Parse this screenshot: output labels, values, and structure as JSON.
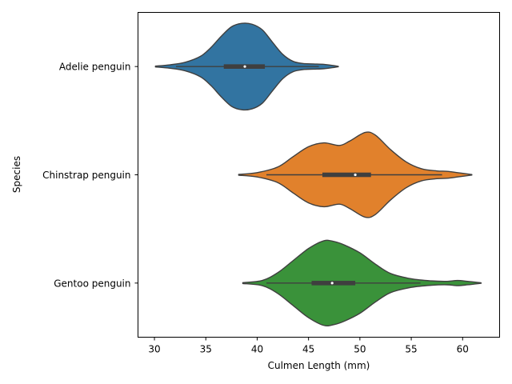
{
  "chart_data": {
    "type": "violin",
    "orientation": "horizontal",
    "title": "",
    "xlabel": "Culmen Length (mm)",
    "ylabel": "Species",
    "xlim": [
      28.4,
      63.6
    ],
    "xticks": [
      30,
      35,
      40,
      45,
      50,
      55,
      60
    ],
    "grid": false,
    "categories": [
      "Adelie penguin",
      "Chinstrap penguin",
      "Gentoo penguin"
    ],
    "series": [
      {
        "name": "Adelie penguin",
        "color": "#3274a1",
        "kde_range": [
          30.1,
          47.9
        ],
        "density": [
          [
            30.1,
            0.01
          ],
          [
            31.5,
            0.04
          ],
          [
            33.0,
            0.1
          ],
          [
            34.5,
            0.24
          ],
          [
            35.5,
            0.44
          ],
          [
            36.5,
            0.7
          ],
          [
            37.5,
            0.92
          ],
          [
            38.5,
            1.0
          ],
          [
            39.5,
            0.98
          ],
          [
            40.5,
            0.85
          ],
          [
            41.5,
            0.56
          ],
          [
            42.5,
            0.28
          ],
          [
            43.5,
            0.12
          ],
          [
            44.5,
            0.07
          ],
          [
            45.5,
            0.06
          ],
          [
            46.5,
            0.05
          ],
          [
            47.5,
            0.02
          ],
          [
            47.9,
            0.005
          ]
        ],
        "whisker": [
          32.1,
          46.0
        ],
        "q1": 36.75,
        "median": 38.8,
        "q3": 40.75
      },
      {
        "name": "Chinstrap penguin",
        "color": "#e1812c",
        "kde_range": [
          38.2,
          60.9
        ],
        "density": [
          [
            38.2,
            0.01
          ],
          [
            40.0,
            0.05
          ],
          [
            42.0,
            0.18
          ],
          [
            43.5,
            0.42
          ],
          [
            45.0,
            0.65
          ],
          [
            46.5,
            0.74
          ],
          [
            48.0,
            0.68
          ],
          [
            49.0,
            0.78
          ],
          [
            50.5,
            0.98
          ],
          [
            51.5,
            0.92
          ],
          [
            53.0,
            0.58
          ],
          [
            54.5,
            0.3
          ],
          [
            56.0,
            0.14
          ],
          [
            57.5,
            0.09
          ],
          [
            58.5,
            0.08
          ],
          [
            59.5,
            0.05
          ],
          [
            60.9,
            0.005
          ]
        ],
        "whisker": [
          40.9,
          58.0
        ],
        "q1": 46.35,
        "median": 49.55,
        "q3": 51.08
      },
      {
        "name": "Gentoo penguin",
        "color": "#3a923a",
        "kde_range": [
          38.6,
          61.8
        ],
        "density": [
          [
            38.6,
            0.01
          ],
          [
            40.5,
            0.06
          ],
          [
            42.0,
            0.24
          ],
          [
            43.5,
            0.52
          ],
          [
            45.0,
            0.8
          ],
          [
            46.5,
            0.98
          ],
          [
            47.5,
            0.96
          ],
          [
            48.5,
            0.88
          ],
          [
            50.0,
            0.7
          ],
          [
            51.5,
            0.44
          ],
          [
            53.0,
            0.22
          ],
          [
            55.0,
            0.1
          ],
          [
            57.0,
            0.05
          ],
          [
            58.5,
            0.04
          ],
          [
            59.5,
            0.06
          ],
          [
            60.5,
            0.04
          ],
          [
            61.8,
            0.005
          ]
        ],
        "whisker": [
          40.9,
          55.9
        ],
        "q1": 45.3,
        "median": 47.3,
        "q3": 49.55
      }
    ]
  }
}
